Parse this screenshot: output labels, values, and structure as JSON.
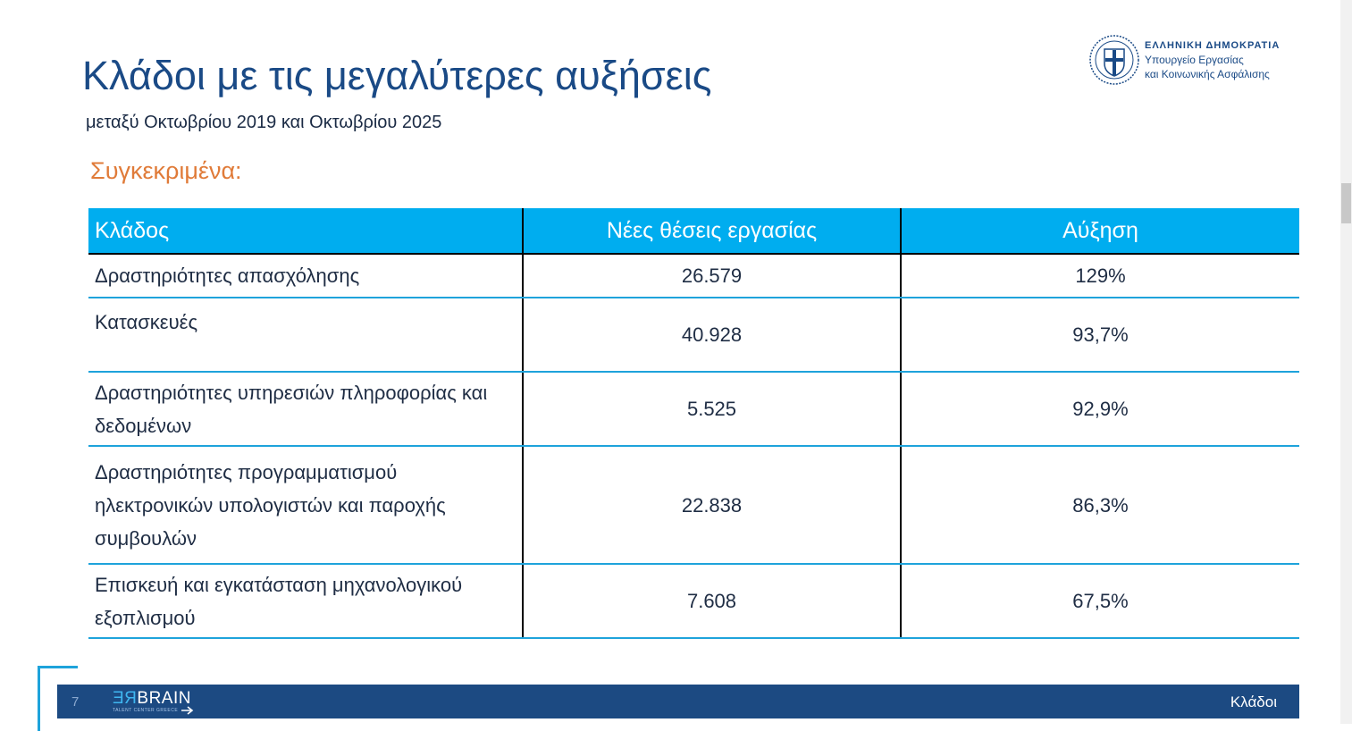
{
  "header": {
    "title": "Κλάδοι με τις μεγαλύτερες αυξήσεις",
    "subtitle": "μεταξύ Οκτωβρίου 2019 και Οκτωβρίου 2025",
    "section_label": "Συγκεκριμένα:"
  },
  "logo": {
    "icon": "greek-coat-of-arms-seal",
    "line1": "ΕΛΛΗΝΙΚΗ ΔΗΜΟΚΡΑΤΙΑ",
    "line2": "Υπουργείο Εργασίας",
    "line3": "και Κοινωνικής Ασφάλισης"
  },
  "table": {
    "headers": [
      "Κλάδος",
      "Νέες θέσεις εργασίας",
      "Αύξηση"
    ],
    "rows": [
      {
        "name": "Δραστηριότητες απασχόλησης",
        "jobs": "26.579",
        "increase": "129%"
      },
      {
        "name": "Κατασκευές",
        "jobs": "40.928",
        "increase": "93,7%"
      },
      {
        "name": "Δραστηριότητες υπηρεσιών πληροφορίας και δεδομένων",
        "jobs": "5.525",
        "increase": "92,9%"
      },
      {
        "name": "Δραστηριότητες προγραμματισμού ηλεκτρονικών υπολογιστών και παροχής συμβουλών",
        "jobs": "22.838",
        "increase": "86,3%"
      },
      {
        "name": "Επισκευή και εγκατάσταση μηχανολογικού εξοπλισμού",
        "jobs": "7.608",
        "increase": "67,5%"
      }
    ]
  },
  "footer": {
    "page_number": "7",
    "logo_re": "ƎЯ",
    "logo_brain": "BRAIN",
    "logo_sub": "TALENT CENTER GREECE",
    "label": "Κλάδοι"
  },
  "colors": {
    "title": "#1a4a86",
    "accent_orange": "#e07b39",
    "table_header": "#00adef",
    "row_border": "#1ea3db",
    "footer_bar": "#1c4a82"
  }
}
